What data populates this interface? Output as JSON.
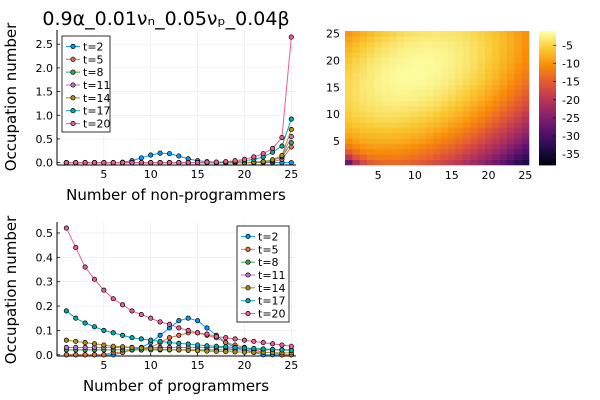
{
  "chart_data": [
    {
      "type": "line",
      "title": "0.9α_0.01νₙ_0.05νₚ_0.04β",
      "xlabel": "Number of non-programmers",
      "ylabel": "Occupation number",
      "xlim": [
        0,
        25.5
      ],
      "ylim": [
        -0.05,
        2.8
      ],
      "xticks": [
        5,
        10,
        15,
        20,
        25
      ],
      "yticks": [
        0.0,
        0.5,
        1.0,
        1.5,
        2.0,
        2.5
      ],
      "ytick_labels": [
        "0.0",
        "0.5",
        "1.0",
        "1.5",
        "2.0",
        "2.5"
      ],
      "grid": true,
      "legend_position": "top-left",
      "x": [
        1,
        2,
        3,
        4,
        5,
        6,
        7,
        8,
        9,
        10,
        11,
        12,
        13,
        14,
        15,
        16,
        17,
        18,
        19,
        20,
        21,
        22,
        23,
        24,
        25
      ],
      "series": [
        {
          "name": "t=2",
          "color": "#009AFA",
          "values": [
            0,
            0,
            0,
            0,
            0,
            0,
            0.01,
            0.04,
            0.1,
            0.16,
            0.2,
            0.19,
            0.14,
            0.08,
            0.04,
            0.02,
            0.01,
            0.01,
            0,
            0,
            0,
            0,
            0,
            0,
            0
          ]
        },
        {
          "name": "t=5",
          "color": "#E36F47",
          "values": [
            0,
            0,
            0,
            0,
            0,
            0,
            0,
            0,
            0,
            0,
            0,
            0,
            0,
            0,
            0,
            0,
            0,
            0,
            0,
            0,
            0,
            0.01,
            0.02,
            0.07,
            0.33
          ]
        },
        {
          "name": "t=8",
          "color": "#3EA44E",
          "values": [
            0,
            0,
            0,
            0,
            0,
            0,
            0,
            0,
            0,
            0,
            0,
            0,
            0,
            0,
            0,
            0,
            0,
            0,
            0,
            0,
            0.01,
            0.02,
            0.05,
            0.12,
            0.42
          ]
        },
        {
          "name": "t=11",
          "color": "#C371D2",
          "values": [
            0,
            0,
            0,
            0,
            0,
            0,
            0,
            0,
            0,
            0,
            0,
            0,
            0,
            0,
            0,
            0,
            0,
            0,
            0,
            0,
            0.01,
            0.02,
            0.05,
            0.13,
            0.55
          ]
        },
        {
          "name": "t=14",
          "color": "#AC8E18",
          "values": [
            0,
            0,
            0,
            0,
            0,
            0,
            0,
            0,
            0,
            0,
            0,
            0,
            0,
            0,
            0,
            0,
            0,
            0,
            0,
            0,
            0.01,
            0.02,
            0.06,
            0.15,
            0.7
          ]
        },
        {
          "name": "t=17",
          "color": "#00A9AD",
          "values": [
            0,
            0,
            0,
            0,
            0,
            0,
            0,
            0,
            0,
            0,
            0,
            0,
            0,
            0,
            0,
            0,
            0,
            0.01,
            0.02,
            0.04,
            0.07,
            0.12,
            0.22,
            0.35,
            0.92
          ]
        },
        {
          "name": "t=20",
          "color": "#ED5E93",
          "values": [
            0,
            0,
            0,
            0,
            0,
            0,
            0,
            0,
            0,
            0,
            0,
            0,
            0,
            0,
            0,
            0.01,
            0.01,
            0.02,
            0.04,
            0.07,
            0.12,
            0.19,
            0.3,
            0.53,
            2.65
          ]
        }
      ]
    },
    {
      "type": "heatmap",
      "xlim": [
        0.5,
        25.5
      ],
      "ylim": [
        0.5,
        25.5
      ],
      "xticks": [
        5,
        10,
        15,
        20,
        25
      ],
      "yticks": [
        5,
        10,
        15,
        20,
        25
      ],
      "colorbar_ticks": [
        -5,
        -10,
        -15,
        -20,
        -25,
        -30,
        -35
      ],
      "colorbar_range": [
        -38,
        -1
      ],
      "colormap": "inferno",
      "nx": 25,
      "ny": 25
    },
    {
      "type": "line",
      "xlabel": "Number of programmers",
      "ylabel": "Occupation number",
      "xlim": [
        0,
        25.5
      ],
      "ylim": [
        -0.005,
        0.545
      ],
      "xticks": [
        5,
        10,
        15,
        20,
        25
      ],
      "yticks": [
        0.0,
        0.1,
        0.2,
        0.3,
        0.4,
        0.5
      ],
      "ytick_labels": [
        "0.0",
        "0.1",
        "0.2",
        "0.3",
        "0.4",
        "0.5"
      ],
      "grid": true,
      "legend_position": "top-right",
      "x": [
        1,
        2,
        3,
        4,
        5,
        6,
        7,
        8,
        9,
        10,
        11,
        12,
        13,
        14,
        15,
        16,
        17,
        18,
        19,
        20,
        21,
        22,
        23,
        24,
        25
      ],
      "series": [
        {
          "name": "t=2",
          "color": "#009AFA",
          "values": [
            0,
            0,
            0,
            0,
            0,
            0,
            0.01,
            0.02,
            0.03,
            0.05,
            0.08,
            0.11,
            0.14,
            0.15,
            0.14,
            0.11,
            0.08,
            0.05,
            0.03,
            0.02,
            0.01,
            0,
            0,
            0,
            0
          ]
        },
        {
          "name": "t=5",
          "color": "#E36F47",
          "values": [
            0,
            0,
            0,
            0,
            0,
            0.01,
            0.01,
            0.02,
            0.02,
            0.03,
            0.05,
            0.07,
            0.08,
            0.09,
            0.09,
            0.08,
            0.07,
            0.05,
            0.04,
            0.03,
            0.02,
            0.01,
            0.01,
            0,
            0
          ]
        },
        {
          "name": "t=8",
          "color": "#3EA44E",
          "values": [
            0.02,
            0.02,
            0.02,
            0.02,
            0.02,
            0.02,
            0.02,
            0.02,
            0.02,
            0.02,
            0.02,
            0.02,
            0.02,
            0.02,
            0.02,
            0.02,
            0.02,
            0.02,
            0.02,
            0.02,
            0.02,
            0.02,
            0.02,
            0.02,
            0.02
          ]
        },
        {
          "name": "t=11",
          "color": "#C371D2",
          "values": [
            0.03,
            0.03,
            0.03,
            0.03,
            0.03,
            0.03,
            0.03,
            0.03,
            0.03,
            0.03,
            0.03,
            0.03,
            0.03,
            0.03,
            0.03,
            0.03,
            0.03,
            0.03,
            0.02,
            0.02,
            0.02,
            0.02,
            0.02,
            0.02,
            0.02
          ]
        },
        {
          "name": "t=14",
          "color": "#AC8E18",
          "values": [
            0.06,
            0.055,
            0.05,
            0.045,
            0.04,
            0.035,
            0.033,
            0.03,
            0.028,
            0.025,
            0.023,
            0.021,
            0.02,
            0.018,
            0.017,
            0.015,
            0.014,
            0.013,
            0.012,
            0.011,
            0.01,
            0.01,
            0.009,
            0.008,
            0.008
          ]
        },
        {
          "name": "t=17",
          "color": "#00A9AD",
          "values": [
            0.18,
            0.15,
            0.13,
            0.115,
            0.1,
            0.09,
            0.08,
            0.07,
            0.065,
            0.06,
            0.055,
            0.05,
            0.047,
            0.044,
            0.04,
            0.037,
            0.035,
            0.033,
            0.03,
            0.028,
            0.026,
            0.024,
            0.022,
            0.02,
            0.018
          ]
        },
        {
          "name": "t=20",
          "color": "#ED5E93",
          "values": [
            0.52,
            0.44,
            0.36,
            0.31,
            0.265,
            0.23,
            0.205,
            0.18,
            0.165,
            0.15,
            0.135,
            0.125,
            0.11,
            0.1,
            0.09,
            0.085,
            0.075,
            0.07,
            0.065,
            0.06,
            0.055,
            0.05,
            0.045,
            0.04,
            0.035
          ]
        }
      ]
    }
  ]
}
